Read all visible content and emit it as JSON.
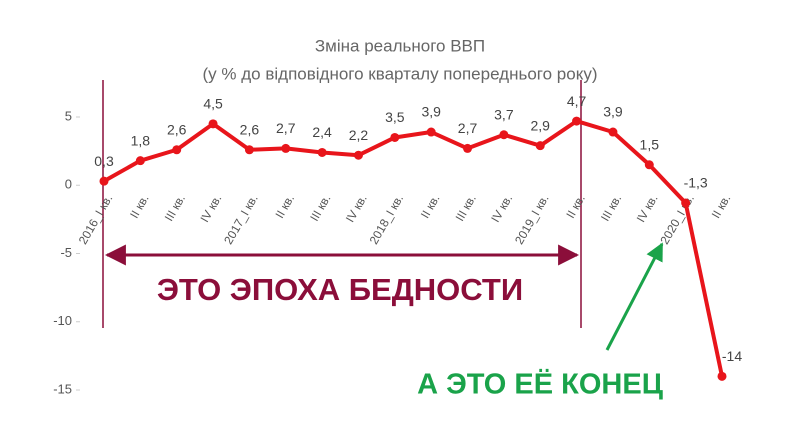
{
  "chart_data": {
    "type": "line",
    "title": "Зміна реального ВВП",
    "subtitle": "(у % до відповідного кварталу попереднього року)",
    "categories": [
      "2016_I кв.",
      "II кв.",
      "III кв.",
      "IV кв.",
      "2017_I кв.",
      "II кв.",
      "III кв.",
      "IV кв.",
      "2018_I кв.",
      "II кв.",
      "III кв.",
      "IV кв.",
      "2019_I кв.",
      "II кв.",
      "III кв.",
      "IV кв.",
      "2020_I кв.",
      "II кв."
    ],
    "values": [
      0.3,
      1.8,
      2.6,
      4.5,
      2.6,
      2.7,
      2.4,
      2.2,
      3.5,
      3.9,
      2.7,
      3.7,
      2.9,
      4.7,
      3.9,
      1.5,
      -1.3,
      -14
    ],
    "value_labels": [
      "0,3",
      "1,8",
      "2,6",
      "4,5",
      "2,6",
      "2,7",
      "2,4",
      "2,2",
      "3,5",
      "3,9",
      "2,7",
      "3,7",
      "2,9",
      "4,7",
      "3,9",
      "1,5",
      "-1,3",
      "-14"
    ],
    "color": "#e8151b",
    "ylim": [
      -15,
      5
    ],
    "yticks": [
      -15,
      -10,
      -5,
      0,
      5
    ],
    "annotations": [
      "ЭТО ЭПОХА БЕДНОСТИ",
      "А ЭТО ЕЁ КОНЕЦ"
    ]
  }
}
